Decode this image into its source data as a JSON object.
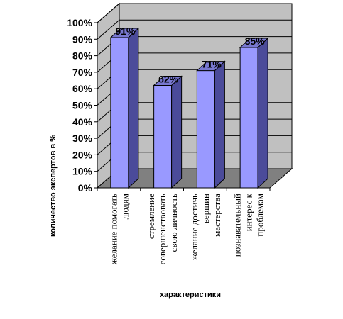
{
  "chart_data": {
    "type": "bar",
    "categories": [
      [
        "желание помогать",
        "людям"
      ],
      [
        "стремление",
        "совершенствовать",
        "свою личность"
      ],
      [
        "желание достичь",
        "вершин",
        "мастерства"
      ],
      [
        "познавательный",
        "интерес к",
        "проблемам"
      ]
    ],
    "values": [
      91,
      62,
      71,
      85
    ],
    "data_labels": [
      "91%",
      "62%",
      "71%",
      "85%"
    ],
    "yticks": [
      "0%",
      "10%",
      "20%",
      "30%",
      "40%",
      "50%",
      "60%",
      "70%",
      "80%",
      "90%",
      "100%"
    ],
    "ylim": [
      0,
      100
    ],
    "xlabel": "характеристики",
    "ylabel": "количество экспертов в %",
    "grid": true,
    "style": "3d",
    "colors": {
      "bar_front": "#9999ff",
      "bar_side": "#4b4b9a",
      "bar_top": "#7878d0",
      "wall": "#c0c0c0",
      "floor": "#808080"
    }
  }
}
